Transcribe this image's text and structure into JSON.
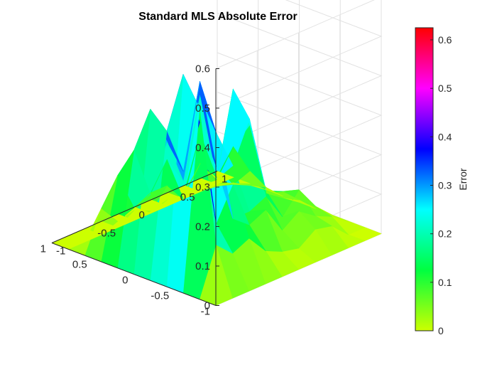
{
  "chart_data": {
    "type": "surface",
    "title": "Standard MLS Absolute Error",
    "xlim": [
      -1,
      1
    ],
    "ylim": [
      -1,
      1
    ],
    "zlim": [
      0,
      0.6
    ],
    "x_ticks": [
      "-1",
      "-0.5",
      "0",
      "0.5",
      "1"
    ],
    "y_ticks": [
      "-1",
      "-0.5",
      "0",
      "0.5",
      "1"
    ],
    "z_ticks": [
      "0",
      "0.1",
      "0.2",
      "0.3",
      "0.4",
      "0.5",
      "0.6"
    ],
    "grid": true,
    "colorbar": {
      "label": "Error",
      "range": [
        0,
        0.625
      ],
      "ticks": [
        "0",
        "0.1",
        "0.2",
        "0.3",
        "0.4",
        "0.5",
        "0.6"
      ],
      "colormap": [
        "#ccff00",
        "#00ff40",
        "#00ffff",
        "#0000ff",
        "#ff00ff",
        "#ff0000"
      ]
    },
    "error_grid": {
      "x": [
        -1,
        -0.8,
        -0.6,
        -0.4,
        -0.2,
        0,
        0.2,
        0.4,
        0.6,
        0.8,
        1
      ],
      "y": [
        -1,
        -0.8,
        -0.6,
        -0.4,
        -0.2,
        0,
        0.2,
        0.4,
        0.6,
        0.8,
        1
      ],
      "z": [
        [
          0,
          0,
          0,
          0,
          0,
          0,
          0,
          0,
          0,
          0,
          0
        ],
        [
          0,
          0.12,
          0.08,
          0.1,
          0.05,
          0.03,
          0.02,
          0.05,
          0.04,
          0,
          0
        ],
        [
          0,
          0.45,
          0.14,
          0.22,
          0.1,
          0.12,
          0.05,
          0.08,
          0.05,
          0.03,
          0
        ],
        [
          0,
          0.52,
          0.38,
          0.25,
          0.1,
          0.1,
          0.12,
          0.05,
          0.1,
          0.04,
          0
        ],
        [
          0,
          0.36,
          0.24,
          0.45,
          0.3,
          0.2,
          0.3,
          0.1,
          0.08,
          0.04,
          0
        ],
        [
          0,
          0.4,
          0.3,
          0.18,
          0.38,
          0.15,
          0.36,
          0.25,
          0.06,
          0.03,
          0
        ],
        [
          0,
          0.28,
          0.15,
          0.22,
          0.1,
          0.25,
          0.12,
          0.18,
          0.1,
          0.04,
          0
        ],
        [
          0,
          0.2,
          0.1,
          0.12,
          0.12,
          0.08,
          0.14,
          0.08,
          0.05,
          0.03,
          0
        ],
        [
          0,
          0.1,
          0.05,
          0.06,
          0.04,
          0.05,
          0.04,
          0.05,
          0.03,
          0.02,
          0
        ],
        [
          0,
          0,
          0,
          0,
          0,
          0,
          0,
          0,
          0,
          0,
          0
        ],
        [
          0,
          0,
          0,
          0,
          0,
          0,
          0,
          0,
          0,
          0,
          0
        ]
      ]
    }
  }
}
